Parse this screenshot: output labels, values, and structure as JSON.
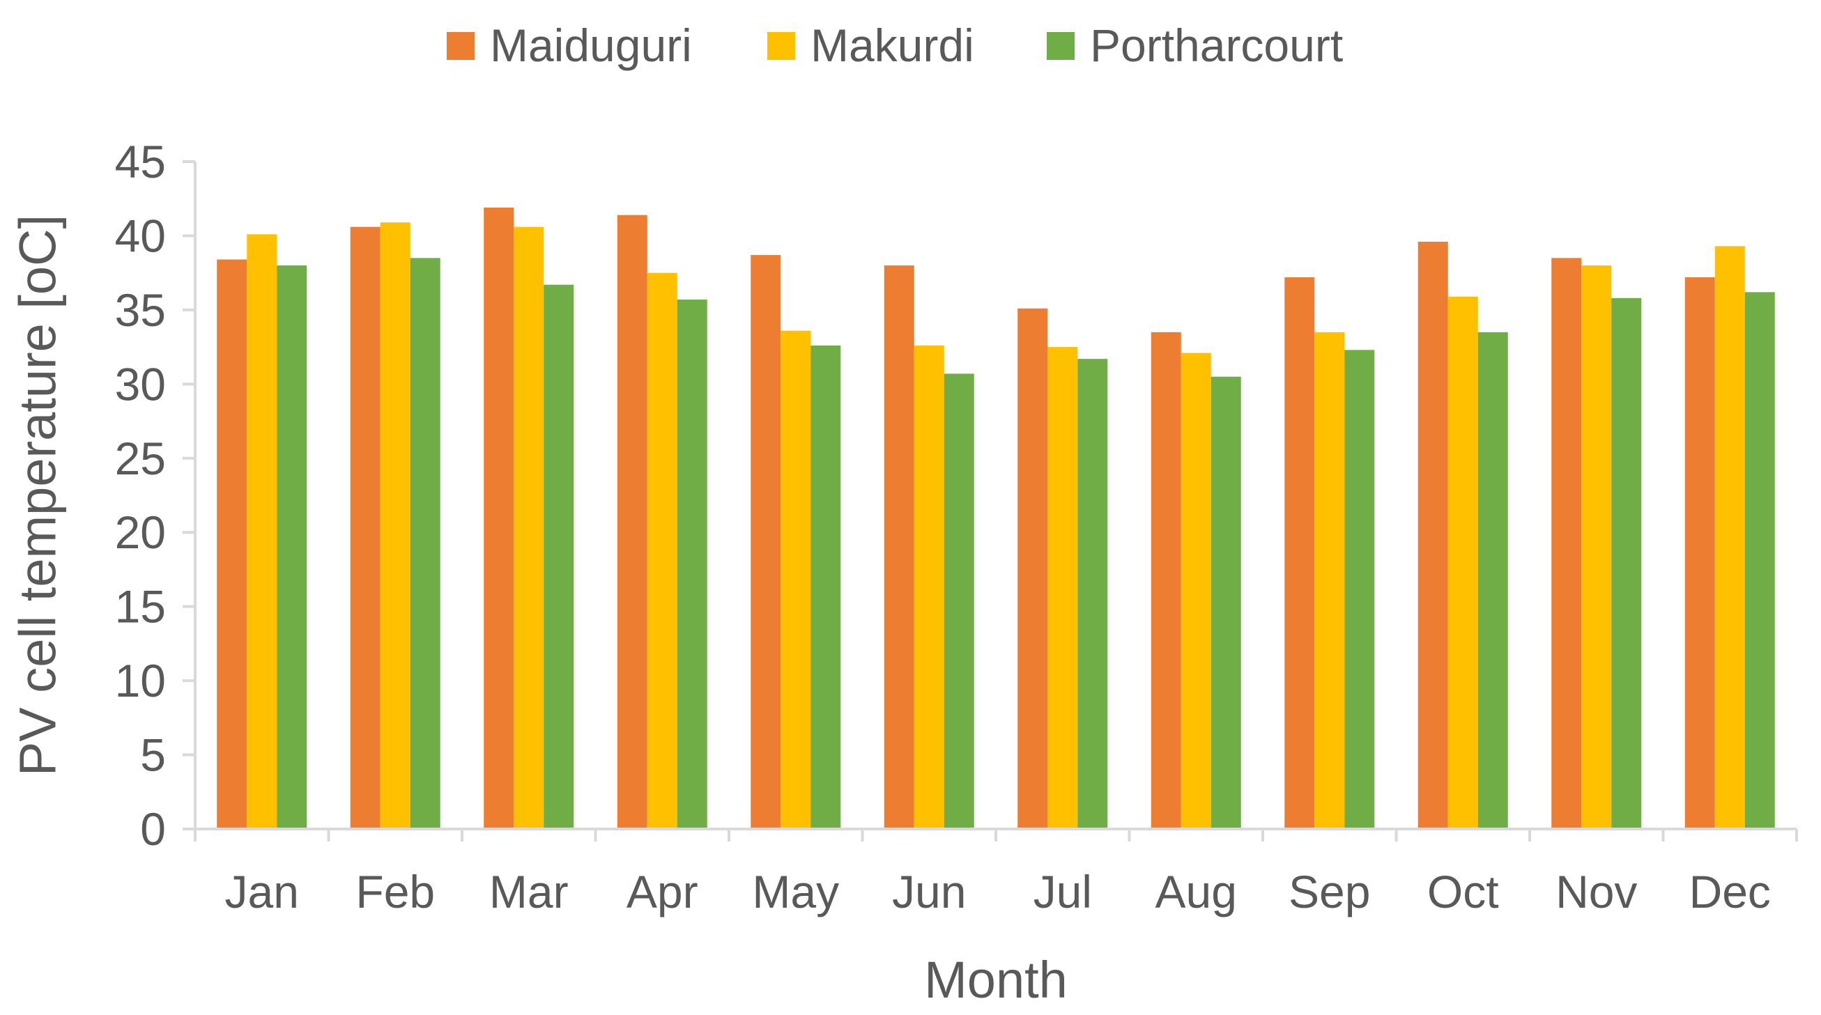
{
  "chart_data": {
    "type": "bar",
    "title": "",
    "xlabel": "Month",
    "ylabel": "PV cell temperature [oC]",
    "ylim": [
      0,
      45
    ],
    "yticks": [
      0,
      5,
      10,
      15,
      20,
      25,
      30,
      35,
      40,
      45
    ],
    "yticks_text": [
      "0",
      "5",
      "10",
      "15",
      "20",
      "25",
      "30",
      "35",
      "40",
      "45"
    ],
    "grid": false,
    "legend_position": "top-center",
    "categories": [
      "Jan",
      "Feb",
      "Mar",
      "Apr",
      "May",
      "Jun",
      "Jul",
      "Aug",
      "Sep",
      "Oct",
      "Nov",
      "Dec"
    ],
    "series": [
      {
        "name": "Maiduguri",
        "color": "#ED7D31",
        "values": [
          38.4,
          40.6,
          41.9,
          41.4,
          38.7,
          38.0,
          35.1,
          33.5,
          37.2,
          39.6,
          38.5,
          37.2
        ]
      },
      {
        "name": "Makurdi",
        "color": "#FFC000",
        "values": [
          40.1,
          40.9,
          40.6,
          37.5,
          33.6,
          32.6,
          32.5,
          32.1,
          33.5,
          35.9,
          38.0,
          39.3
        ]
      },
      {
        "name": "Portharcourt",
        "color": "#70AD47",
        "values": [
          38.0,
          38.5,
          36.7,
          35.7,
          32.6,
          30.7,
          31.7,
          30.5,
          32.3,
          33.5,
          35.8,
          36.2
        ]
      }
    ]
  }
}
